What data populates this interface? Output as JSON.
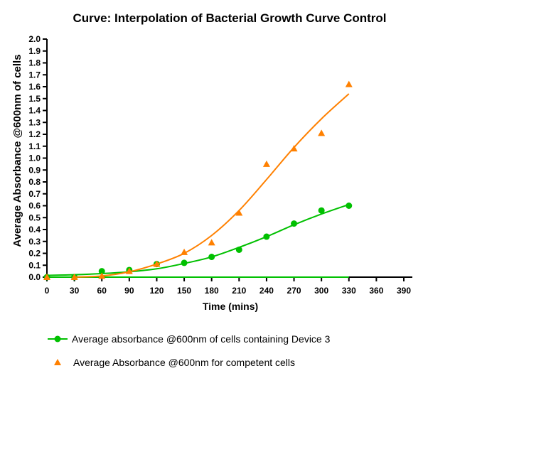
{
  "chart_data": {
    "type": "scatter",
    "title": "Curve: Interpolation of Bacterial Growth Curve Control",
    "xlabel": "Time (mins)",
    "ylabel": "Average Absorbance @600nm of cells",
    "xlim": [
      0,
      390
    ],
    "ylim": [
      0,
      2.0
    ],
    "xticks": [
      "0",
      "30",
      "60",
      "90",
      "120",
      "150",
      "180",
      "210",
      "240",
      "270",
      "300",
      "330",
      "360",
      "390"
    ],
    "yticks": [
      "0.0",
      "0.1",
      "0.2",
      "0.3",
      "0.4",
      "0.5",
      "0.6",
      "0.7",
      "0.8",
      "0.9",
      "1.0",
      "1.1",
      "1.2",
      "1.3",
      "1.4",
      "1.5",
      "1.6",
      "1.7",
      "1.8",
      "1.9",
      "2.0"
    ],
    "grid": false,
    "legend_position": "bottom-left",
    "series": [
      {
        "name": "Average absorbance @600nm of cells containing Device 3",
        "color": "#00c000",
        "marker": "circle",
        "x": [
          0,
          30,
          60,
          90,
          120,
          150,
          180,
          210,
          240,
          270,
          300,
          330
        ],
        "values": [
          0.0,
          0.0,
          0.05,
          0.06,
          0.11,
          0.12,
          0.17,
          0.23,
          0.34,
          0.45,
          0.56,
          0.6
        ],
        "fit": [
          0.015,
          0.02,
          0.03,
          0.045,
          0.07,
          0.115,
          0.17,
          0.25,
          0.34,
          0.44,
          0.53,
          0.61
        ]
      },
      {
        "name": "Average Absorbance @600nm for competent cells",
        "color": "#ff8000",
        "marker": "triangle",
        "x": [
          0,
          30,
          60,
          90,
          120,
          150,
          180,
          210,
          240,
          270,
          300,
          330
        ],
        "values": [
          0.0,
          0.0,
          0.01,
          0.05,
          0.11,
          0.21,
          0.29,
          0.54,
          0.95,
          1.08,
          1.21,
          1.62
        ],
        "fit": [
          0.0,
          0.0,
          0.01,
          0.045,
          0.11,
          0.2,
          0.35,
          0.56,
          0.82,
          1.09,
          1.33,
          1.54
        ]
      }
    ],
    "baseline": {
      "color": "#00c000",
      "x": [
        0,
        330
      ],
      "values": [
        0.0,
        0.0
      ]
    }
  }
}
